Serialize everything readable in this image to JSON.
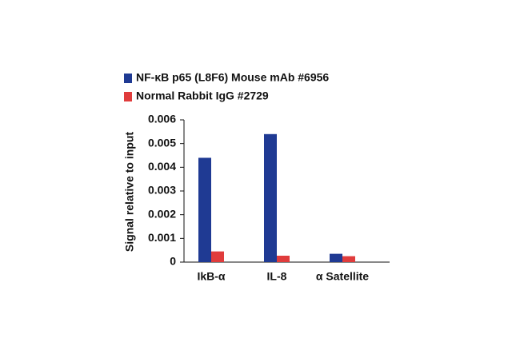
{
  "chart_data": {
    "type": "bar",
    "ylabel": "Signal relative to input",
    "categories": [
      "IkB-α",
      "IL-8",
      "α Satellite"
    ],
    "series": [
      {
        "name": "NF-κB p65 (L8F6) Mouse mAb #6956",
        "color": "#1f3a93",
        "values": [
          0.0044,
          0.0054,
          0.00035
        ]
      },
      {
        "name": "Normal Rabbit IgG #2729",
        "color": "#e03c3c",
        "values": [
          0.00045,
          0.00027,
          0.00025
        ]
      }
    ],
    "ylim": [
      0,
      0.006
    ],
    "yticks": [
      0,
      0.001,
      0.002,
      0.003,
      0.004,
      0.005,
      0.006
    ]
  }
}
